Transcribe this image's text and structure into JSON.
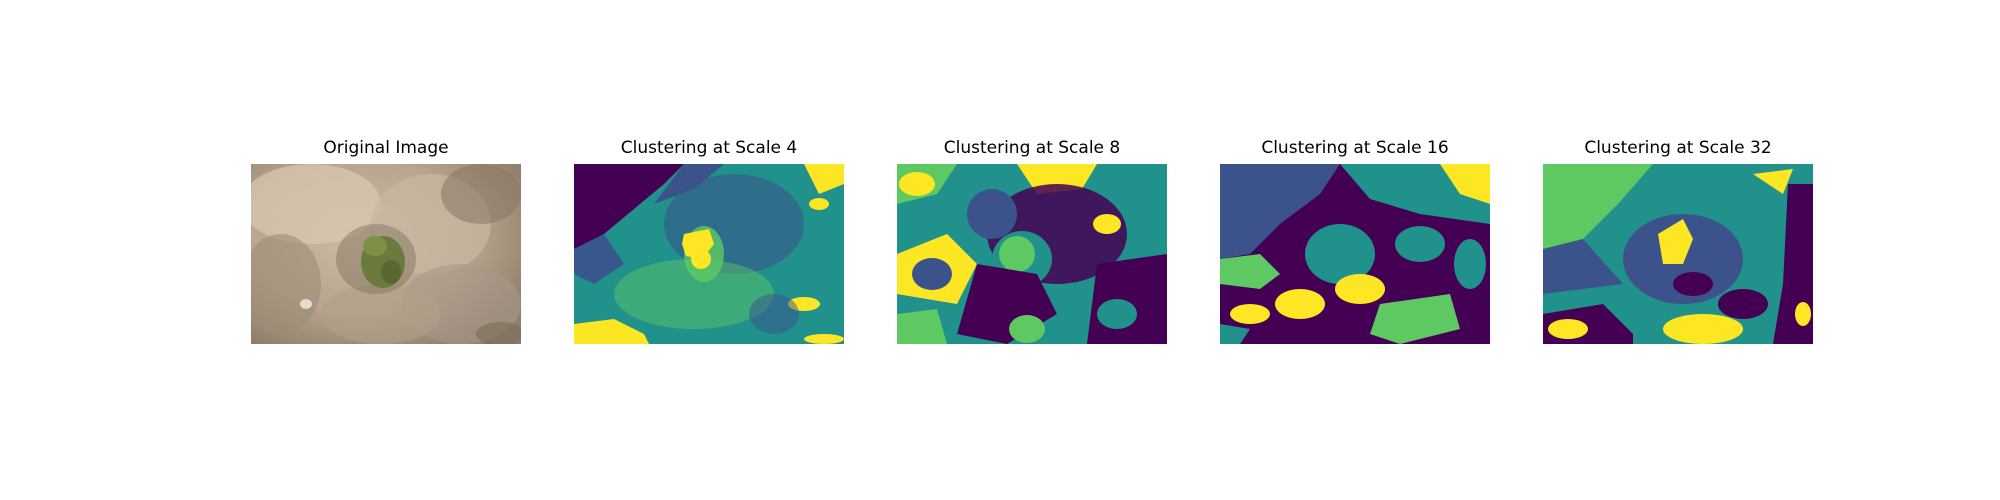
{
  "figure": {
    "panels": [
      {
        "title": "Original Image",
        "kind": "photo"
      },
      {
        "title": "Clustering at Scale 4",
        "kind": "cluster-map"
      },
      {
        "title": "Clustering at Scale 8",
        "kind": "cluster-map"
      },
      {
        "title": "Clustering at Scale 16",
        "kind": "cluster-map"
      },
      {
        "title": "Clustering at Scale 32",
        "kind": "cluster-map"
      }
    ],
    "cluster_colors": [
      "#440154",
      "#3b528b",
      "#21918c",
      "#5ec962",
      "#fde725"
    ]
  }
}
